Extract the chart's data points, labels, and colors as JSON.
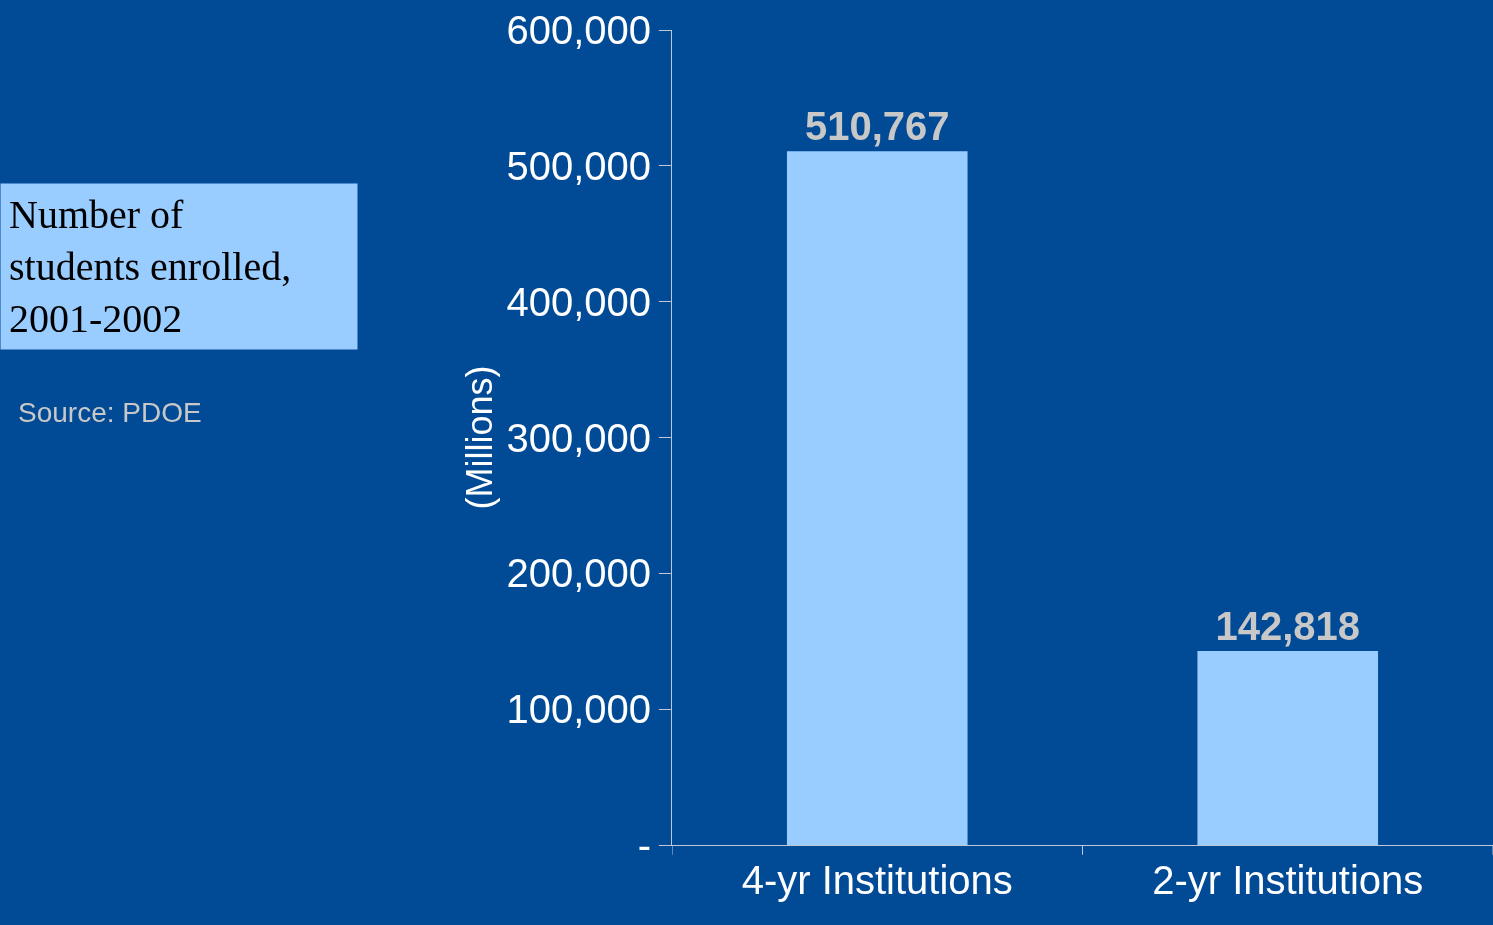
{
  "chart_data": {
    "type": "bar",
    "title": "Number of\nstudents enrolled,\n2001-2002",
    "ylabel": "(Millions)",
    "annotations": [
      "Source: PDOE"
    ],
    "categories": [
      "4-yr Institutions",
      "2-yr Institutions"
    ],
    "values": [
      510767,
      142818
    ],
    "value_labels": [
      "510,767",
      "142,818"
    ],
    "color": "#99ccff",
    "ylim": [
      0,
      600000
    ],
    "yticks": [
      {
        "value": 0,
        "label": "-"
      },
      {
        "value": 100000,
        "label": "100,000"
      },
      {
        "value": 200000,
        "label": "200,000"
      },
      {
        "value": 300000,
        "label": "300,000"
      },
      {
        "value": 400000,
        "label": "400,000"
      },
      {
        "value": 500000,
        "label": "500,000"
      },
      {
        "value": 600000,
        "label": "600,000"
      }
    ],
    "grid": false,
    "legend": false
  }
}
